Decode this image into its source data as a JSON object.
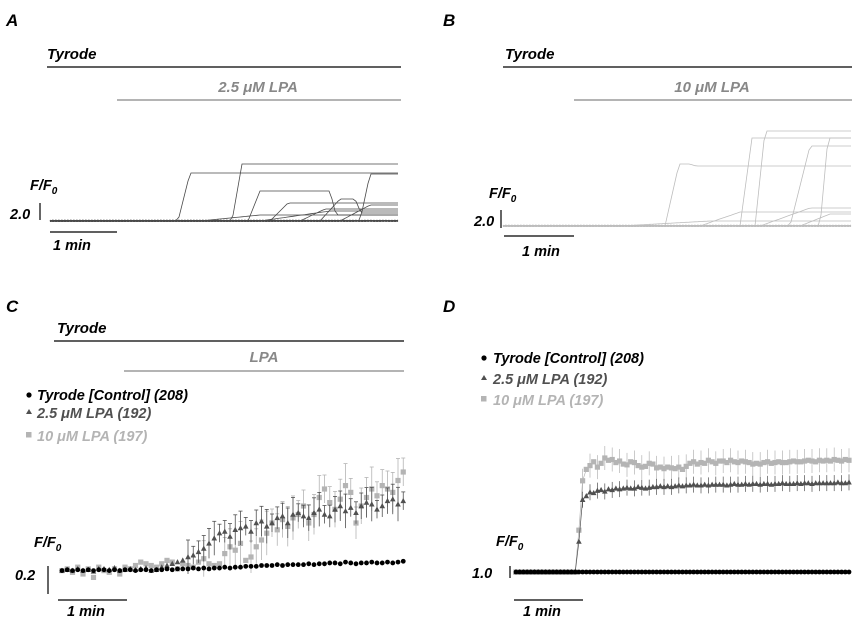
{
  "colors": {
    "black": "#000000",
    "dark": "#505050",
    "light": "#b4b4b4",
    "darkTrace": "#4a4a4a",
    "lightTrace": "#bdbdbd"
  },
  "panels": {
    "A": {
      "letter": "A",
      "bar_top": "Tyrode",
      "bar_drug": "2.5 μM LPA",
      "ylabel": "F/F",
      "ylabel_sub": "0",
      "scale_y": "2.0",
      "scale_x": "1 min"
    },
    "B": {
      "letter": "B",
      "bar_top": "Tyrode",
      "bar_drug": "10 μM LPA",
      "ylabel": "F/F",
      "ylabel_sub": "0",
      "scale_y": "2.0",
      "scale_x": "1 min"
    },
    "C": {
      "letter": "C",
      "bar_top": "Tyrode",
      "bar_drug": "LPA",
      "ylabel": "F/F",
      "ylabel_sub": "0",
      "scale_y": "0.2",
      "scale_x": "1 min",
      "legend": [
        {
          "label": "Tyrode [Control] (208)",
          "marker": "circle",
          "color": "#000000"
        },
        {
          "label": "2.5 μM LPA (192)",
          "marker": "triangle",
          "color": "#505050"
        },
        {
          "label": "10 μM LPA (197)",
          "marker": "square",
          "color": "#b4b4b4"
        }
      ]
    },
    "D": {
      "letter": "D",
      "ylabel": "F/F",
      "ylabel_sub": "0",
      "scale_y": "1.0",
      "scale_x": "1 min",
      "legend": [
        {
          "label": "Tyrode [Control] (208)",
          "marker": "circle",
          "color": "#000000"
        },
        {
          "label": "2.5 μM LPA (192)",
          "marker": "triangle",
          "color": "#505050"
        },
        {
          "label": "10 μM LPA (197)",
          "marker": "square",
          "color": "#b4b4b4"
        }
      ]
    }
  },
  "chart_data": [
    {
      "panel": "C",
      "type": "scatter",
      "x_unit": "frame",
      "series": [
        {
          "name": "Tyrode [Control] (208)",
          "values": [
            0.02,
            0.025,
            0.02,
            0.025,
            0.02,
            0.025,
            0.02,
            0.025,
            0.025,
            0.02,
            0.025,
            0.02,
            0.025,
            0.025,
            0.02,
            0.025,
            0.025,
            0.02,
            0.025,
            0.025,
            0.03,
            0.025,
            0.03,
            0.03,
            0.03,
            0.035,
            0.03,
            0.035,
            0.03,
            0.035,
            0.035,
            0.04,
            0.035,
            0.04,
            0.04,
            0.045,
            0.045,
            0.045,
            0.05,
            0.05,
            0.05,
            0.055,
            0.05,
            0.055,
            0.055,
            0.055,
            0.055,
            0.06,
            0.055,
            0.06,
            0.06,
            0.065,
            0.065,
            0.06,
            0.07,
            0.065,
            0.06,
            0.065,
            0.065,
            0.07,
            0.065,
            0.065,
            0.07,
            0.065,
            0.07,
            0.075
          ]
        },
        {
          "name": "2.5 μM LPA (192)",
          "values": [
            0.02,
            0.025,
            0.02,
            0.03,
            0.02,
            0.025,
            0.015,
            0.03,
            0.03,
            0.025,
            0.035,
            0.02,
            0.025,
            0.03,
            0.025,
            0.03,
            0.035,
            0.02,
            0.025,
            0.04,
            0.05,
            0.06,
            0.07,
            0.08,
            0.1,
            0.11,
            0.13,
            0.15,
            0.18,
            0.21,
            0.24,
            0.25,
            0.22,
            0.26,
            0.27,
            0.28,
            0.25,
            0.3,
            0.31,
            0.28,
            0.3,
            0.33,
            0.34,
            0.3,
            0.35,
            0.36,
            0.34,
            0.33,
            0.36,
            0.38,
            0.35,
            0.34,
            0.38,
            0.4,
            0.37,
            0.39,
            0.36,
            0.4,
            0.42,
            0.41,
            0.38,
            0.4,
            0.43,
            0.44,
            0.41,
            0.43
          ]
        },
        {
          "name": "10 μM LPA (197)",
          "values": [
            0.02,
            0.03,
            0.01,
            0.04,
            0.0,
            0.03,
            -0.02,
            0.04,
            0.02,
            0.01,
            0.03,
            0.0,
            0.04,
            0.03,
            0.05,
            0.07,
            0.06,
            0.05,
            0.04,
            0.06,
            0.08,
            0.07,
            0.03,
            0.06,
            0.05,
            0.04,
            0.07,
            0.09,
            0.06,
            0.05,
            0.06,
            0.12,
            0.16,
            0.14,
            0.18,
            0.08,
            0.1,
            0.16,
            0.2,
            0.24,
            0.3,
            0.26,
            0.32,
            0.28,
            0.33,
            0.35,
            0.4,
            0.3,
            0.35,
            0.45,
            0.5,
            0.42,
            0.38,
            0.44,
            0.52,
            0.48,
            0.3,
            0.4,
            0.45,
            0.5,
            0.46,
            0.52,
            0.5,
            0.48,
            0.55,
            0.6
          ]
        }
      ]
    },
    {
      "panel": "D",
      "type": "scatter",
      "x_unit": "frame",
      "series": [
        {
          "name": "Tyrode [Control] (208)",
          "values": [
            0,
            0,
            0,
            0,
            0,
            0,
            0,
            0,
            0,
            0,
            0,
            0,
            0,
            0,
            0,
            0,
            0,
            0,
            0,
            0,
            0,
            0,
            0,
            0,
            0,
            0,
            0,
            0,
            0,
            0,
            0,
            0,
            0,
            0,
            0,
            0,
            0,
            0,
            0,
            0,
            0,
            0,
            0,
            0,
            0,
            0,
            0,
            0,
            0,
            0,
            0,
            0,
            0,
            0,
            0,
            0,
            0,
            0,
            0,
            0,
            0,
            0,
            0,
            0,
            0,
            0,
            0,
            0,
            0,
            0,
            0,
            0,
            0,
            0,
            0,
            0,
            0,
            0,
            0,
            0,
            0,
            0,
            0,
            0,
            0,
            0,
            0,
            0,
            0,
            0,
            0
          ]
        },
        {
          "name": "2.5 μM LPA (192)",
          "values": [
            0,
            0,
            0,
            0,
            0,
            0,
            0,
            0,
            0,
            0,
            0,
            0,
            0,
            0,
            0,
            0,
            0,
            0.4,
            0.95,
            1.0,
            1.05,
            1.04,
            1.07,
            1.08,
            1.06,
            1.09,
            1.08,
            1.1,
            1.09,
            1.1,
            1.11,
            1.1,
            1.1,
            1.12,
            1.11,
            1.1,
            1.11,
            1.12,
            1.12,
            1.13,
            1.12,
            1.13,
            1.12,
            1.13,
            1.14,
            1.13,
            1.14,
            1.14,
            1.15,
            1.14,
            1.14,
            1.15,
            1.14,
            1.15,
            1.15,
            1.15,
            1.15,
            1.14,
            1.15,
            1.16,
            1.15,
            1.15,
            1.16,
            1.15,
            1.16,
            1.16,
            1.15,
            1.16,
            1.16,
            1.15,
            1.16,
            1.16,
            1.17,
            1.16,
            1.16,
            1.16,
            1.17,
            1.16,
            1.17,
            1.17,
            1.16,
            1.17,
            1.17,
            1.17,
            1.17,
            1.17,
            1.17,
            1.18,
            1.17,
            1.17,
            1.18
          ]
        },
        {
          "name": "10 μM LPA (197)",
          "values": [
            0,
            0,
            0,
            0,
            0,
            0,
            0,
            0,
            0,
            0,
            0,
            0,
            0,
            0,
            0,
            0,
            0,
            0.55,
            1.2,
            1.35,
            1.4,
            1.45,
            1.38,
            1.43,
            1.5,
            1.47,
            1.48,
            1.44,
            1.46,
            1.42,
            1.41,
            1.45,
            1.44,
            1.4,
            1.38,
            1.39,
            1.43,
            1.42,
            1.37,
            1.38,
            1.36,
            1.38,
            1.37,
            1.36,
            1.38,
            1.35,
            1.39,
            1.43,
            1.45,
            1.42,
            1.44,
            1.43,
            1.47,
            1.45,
            1.43,
            1.46,
            1.46,
            1.44,
            1.47,
            1.45,
            1.44,
            1.46,
            1.45,
            1.44,
            1.42,
            1.43,
            1.42,
            1.44,
            1.45,
            1.43,
            1.44,
            1.45,
            1.44,
            1.44,
            1.45,
            1.46,
            1.45,
            1.45,
            1.46,
            1.47,
            1.46,
            1.45,
            1.47,
            1.46,
            1.47,
            1.46,
            1.48,
            1.47,
            1.46,
            1.48,
            1.47
          ]
        }
      ]
    }
  ]
}
